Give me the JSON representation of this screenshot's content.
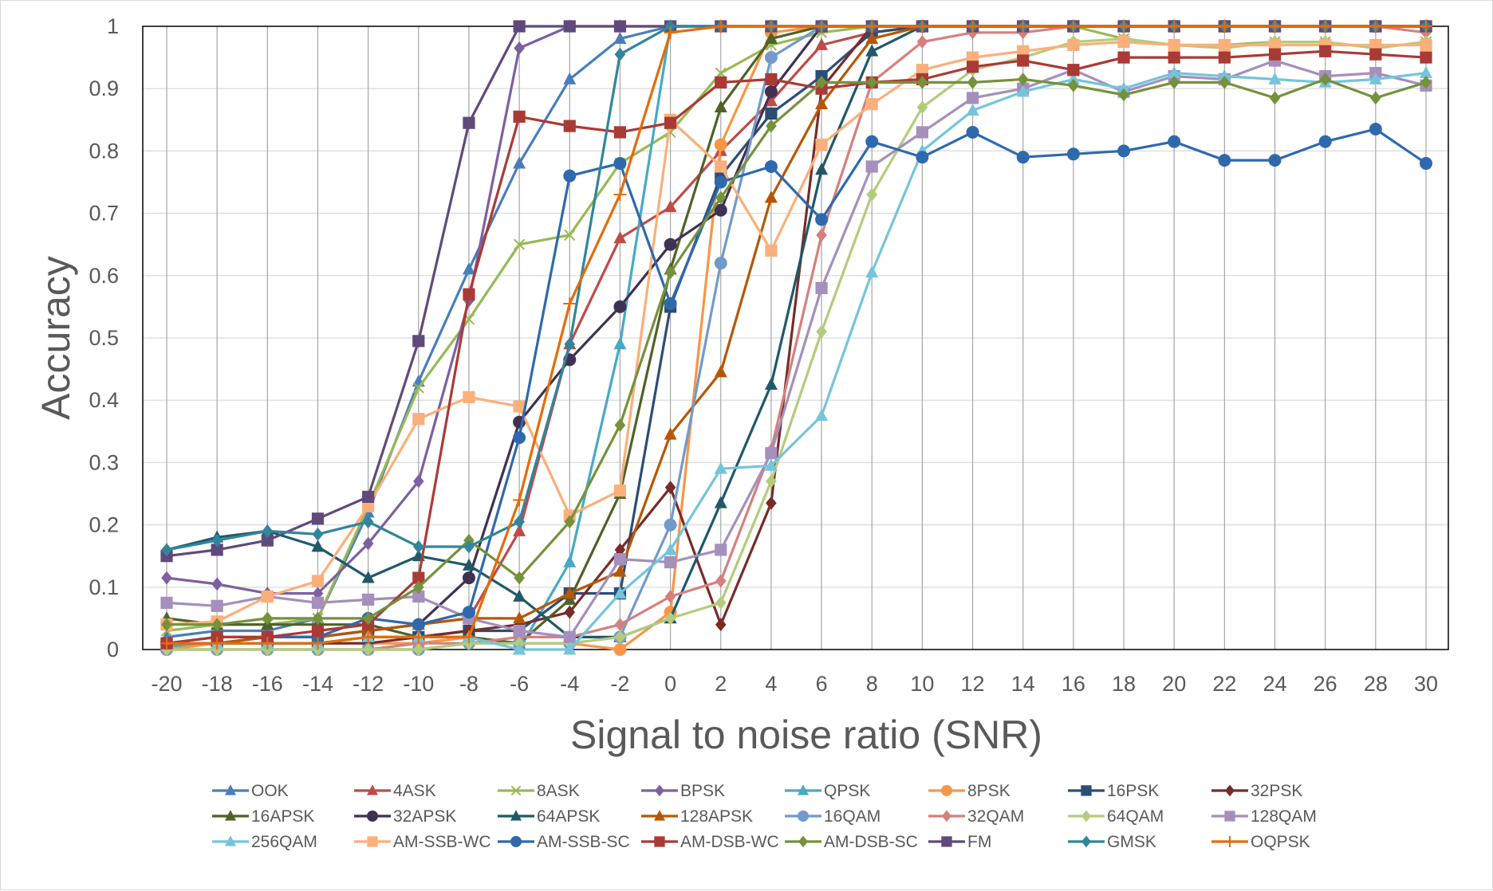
{
  "chart_data": {
    "type": "line",
    "title": "",
    "xlabel": "Signal to noise ratio (SNR)",
    "ylabel": "Accuracy",
    "x": [
      -20,
      -18,
      -16,
      -14,
      -12,
      -10,
      -8,
      -6,
      -4,
      -2,
      0,
      2,
      4,
      6,
      8,
      10,
      12,
      14,
      16,
      18,
      20,
      22,
      24,
      26,
      28,
      30
    ],
    "xlim": [
      -20,
      30
    ],
    "ylim": [
      0,
      1
    ],
    "yticks": [
      "0",
      "0.1",
      "0.2",
      "0.3",
      "0.4",
      "0.5",
      "0.6",
      "0.7",
      "0.8",
      "0.9",
      "1"
    ],
    "xticks": [
      "-20",
      "-18",
      "-16",
      "-14",
      "-12",
      "-10",
      "-8",
      "-6",
      "-4",
      "-2",
      "0",
      "2",
      "4",
      "6",
      "8",
      "10",
      "12",
      "14",
      "16",
      "18",
      "20",
      "22",
      "24",
      "26",
      "28",
      "30"
    ],
    "grid": "vertical",
    "legend": "bottom",
    "series": [
      {
        "name": "OOK",
        "color": "#4a7ebb",
        "marker": "triangle",
        "values": [
          0.02,
          0.03,
          0.03,
          0.05,
          0.22,
          0.43,
          0.61,
          0.78,
          0.915,
          0.98,
          1,
          1,
          1,
          1,
          1,
          1,
          1,
          1,
          1,
          1,
          1,
          1,
          1,
          1,
          1,
          1
        ]
      },
      {
        "name": "4ASK",
        "color": "#be4b48",
        "marker": "triangle",
        "values": [
          0.01,
          0.01,
          0.02,
          0.02,
          0.03,
          0.04,
          0.05,
          0.19,
          0.49,
          0.66,
          0.71,
          0.8,
          0.88,
          0.97,
          0.99,
          1,
          1,
          1,
          1,
          1,
          1,
          1,
          1,
          1,
          1,
          1
        ]
      },
      {
        "name": "8ASK",
        "color": "#98b954",
        "marker": "x",
        "values": [
          0.03,
          0.04,
          0.04,
          0.05,
          0.23,
          0.42,
          0.53,
          0.65,
          0.665,
          0.78,
          0.83,
          0.925,
          0.97,
          0.99,
          1,
          1,
          1,
          1,
          1,
          0.98,
          0.97,
          0.97,
          0.975,
          0.975,
          0.965,
          0.975
        ]
      },
      {
        "name": "BPSK",
        "color": "#7d60a0",
        "marker": "diamond",
        "values": [
          0.115,
          0.105,
          0.09,
          0.09,
          0.17,
          0.27,
          0.56,
          0.965,
          1,
          1,
          1,
          1,
          1,
          1,
          1,
          1,
          1,
          1,
          1,
          1,
          1,
          1,
          1,
          1,
          1,
          1
        ]
      },
      {
        "name": "QPSK",
        "color": "#46aac5",
        "marker": "triangle",
        "values": [
          0.005,
          0.01,
          0.01,
          0.01,
          0.01,
          0.01,
          0.02,
          0,
          0.14,
          0.49,
          1,
          1,
          1,
          1,
          1,
          1,
          1,
          1,
          1,
          1,
          1,
          1,
          1,
          1,
          1,
          1
        ]
      },
      {
        "name": "8PSK",
        "color": "#f79646",
        "marker": "circle",
        "values": [
          0,
          0.01,
          0.01,
          0.01,
          0.01,
          0.01,
          0.02,
          0.01,
          0.01,
          0,
          0.06,
          0.81,
          0.99,
          1,
          1,
          1,
          1,
          1,
          1,
          1,
          1,
          1,
          1,
          1,
          1,
          1
        ]
      },
      {
        "name": "16PSK",
        "color": "#2c4d75",
        "marker": "square",
        "values": [
          0.01,
          0.01,
          0.01,
          0.01,
          0.02,
          0.02,
          0.03,
          0.03,
          0.09,
          0.09,
          0.55,
          0.76,
          0.86,
          0.92,
          0.99,
          1,
          1,
          1,
          1,
          1,
          1,
          1,
          1,
          1,
          1,
          1
        ]
      },
      {
        "name": "32PSK",
        "color": "#772c2a",
        "marker": "diamond",
        "values": [
          0.01,
          0.01,
          0.01,
          0.01,
          0.01,
          0.02,
          0.03,
          0.04,
          0.06,
          0.16,
          0.26,
          0.04,
          0.235,
          0.9,
          1,
          1,
          1,
          1,
          1,
          1,
          1,
          1,
          1,
          1,
          1,
          1
        ]
      },
      {
        "name": "16APSK",
        "color": "#4f6228",
        "marker": "triangle",
        "values": [
          0.05,
          0.04,
          0.04,
          0.04,
          0.04,
          0.02,
          0.02,
          0.01,
          0.08,
          0.25,
          0.61,
          0.87,
          0.98,
          1,
          1,
          1,
          1,
          1,
          1,
          1,
          1,
          1,
          1,
          1,
          1,
          1
        ]
      },
      {
        "name": "32APSK",
        "color": "#403152",
        "marker": "circle",
        "values": [
          0.01,
          0.01,
          0.02,
          0.02,
          0.03,
          0.04,
          0.115,
          0.365,
          0.465,
          0.55,
          0.65,
          0.705,
          0.895,
          1,
          1,
          1,
          1,
          1,
          1,
          1,
          1,
          1,
          1,
          1,
          1,
          1
        ]
      },
      {
        "name": "64APSK",
        "color": "#215968",
        "marker": "triangle",
        "values": [
          0.16,
          0.18,
          0.19,
          0.165,
          0.115,
          0.15,
          0.135,
          0.085,
          0.02,
          0.02,
          0.05,
          0.235,
          0.425,
          0.77,
          0.96,
          1,
          1,
          1,
          1,
          1,
          1,
          1,
          1,
          1,
          1,
          1
        ]
      },
      {
        "name": "128APSK",
        "color": "#b65708",
        "marker": "triangle",
        "values": [
          0.01,
          0.01,
          0.02,
          0.02,
          0.03,
          0.04,
          0.05,
          0.05,
          0.09,
          0.125,
          0.345,
          0.445,
          0.725,
          0.875,
          0.98,
          1,
          1,
          1,
          1,
          1,
          1,
          1,
          1,
          1,
          1,
          1
        ]
      },
      {
        "name": "16QAM",
        "color": "#729aca",
        "marker": "circle",
        "values": [
          0,
          0,
          0,
          0,
          0,
          0,
          0.01,
          0.01,
          0.01,
          0.02,
          0.2,
          0.62,
          0.95,
          1,
          1,
          1,
          1,
          1,
          1,
          1,
          1,
          1,
          1,
          1,
          1,
          1
        ]
      },
      {
        "name": "32QAM",
        "color": "#d5807e",
        "marker": "diamond",
        "values": [
          0,
          0,
          0,
          0,
          0,
          0.01,
          0.01,
          0.02,
          0.02,
          0.04,
          0.085,
          0.11,
          0.32,
          0.665,
          0.91,
          0.975,
          0.99,
          0.99,
          1,
          1,
          1,
          1,
          1,
          1,
          1,
          0.99
        ]
      },
      {
        "name": "64QAM",
        "color": "#b3cc7c",
        "marker": "diamond",
        "values": [
          0,
          0,
          0,
          0,
          0,
          0,
          0.01,
          0.01,
          0.01,
          0.02,
          0.05,
          0.075,
          0.27,
          0.51,
          0.73,
          0.87,
          0.93,
          0.95,
          0.975,
          0.98,
          0.97,
          0.965,
          0.975,
          0.975,
          0.965,
          0.975
        ]
      },
      {
        "name": "128QAM",
        "color": "#a48fbd",
        "marker": "square",
        "values": [
          0.075,
          0.07,
          0.085,
          0.075,
          0.08,
          0.085,
          0.05,
          0.03,
          0.02,
          0.145,
          0.14,
          0.16,
          0.315,
          0.58,
          0.775,
          0.83,
          0.885,
          0.9,
          0.93,
          0.895,
          0.92,
          0.915,
          0.945,
          0.92,
          0.925,
          0.905
        ]
      },
      {
        "name": "256QAM",
        "color": "#75c4da",
        "marker": "triangle",
        "values": [
          0.01,
          0.01,
          0.01,
          0.01,
          0.02,
          0.02,
          0.02,
          0,
          0,
          0.09,
          0.16,
          0.29,
          0.295,
          0.375,
          0.605,
          0.8,
          0.865,
          0.895,
          0.915,
          0.9,
          0.925,
          0.92,
          0.915,
          0.91,
          0.915,
          0.925
        ]
      },
      {
        "name": "AM-SSB-WC",
        "color": "#fbaf7a",
        "marker": "square",
        "values": [
          0.04,
          0.045,
          0.085,
          0.11,
          0.23,
          0.37,
          0.405,
          0.39,
          0.215,
          0.255,
          0.85,
          0.775,
          0.64,
          0.81,
          0.875,
          0.93,
          0.95,
          0.96,
          0.97,
          0.975,
          0.97,
          0.97,
          0.97,
          0.97,
          0.97,
          0.97
        ]
      },
      {
        "name": "AM-SSB-SC",
        "color": "#2f69ad",
        "marker": "circle",
        "values": [
          0.01,
          0.02,
          0.02,
          0.02,
          0.05,
          0.04,
          0.06,
          0.34,
          0.76,
          0.78,
          0.555,
          0.75,
          0.775,
          0.69,
          0.815,
          0.79,
          0.83,
          0.79,
          0.795,
          0.8,
          0.815,
          0.785,
          0.785,
          0.815,
          0.835,
          0.78
        ]
      },
      {
        "name": "AM-DSB-WC",
        "color": "#aa3a36",
        "marker": "square",
        "values": [
          0.01,
          0.02,
          0.02,
          0.03,
          0.04,
          0.115,
          0.57,
          0.855,
          0.84,
          0.83,
          0.845,
          0.91,
          0.915,
          0.9,
          0.91,
          0.915,
          0.935,
          0.945,
          0.93,
          0.95,
          0.95,
          0.95,
          0.955,
          0.96,
          0.955,
          0.95
        ]
      },
      {
        "name": "AM-DSB-SC",
        "color": "#76913b",
        "marker": "diamond",
        "values": [
          0.04,
          0.04,
          0.05,
          0.05,
          0.05,
          0.1,
          0.175,
          0.115,
          0.205,
          0.36,
          0.605,
          0.725,
          0.84,
          0.91,
          0.91,
          0.91,
          0.91,
          0.915,
          0.905,
          0.89,
          0.91,
          0.91,
          0.885,
          0.915,
          0.885,
          0.91
        ]
      },
      {
        "name": "FM",
        "color": "#604a7b",
        "marker": "square",
        "values": [
          0.15,
          0.16,
          0.175,
          0.21,
          0.245,
          0.495,
          0.845,
          1,
          1,
          1,
          1,
          1,
          1,
          1,
          1,
          1,
          1,
          1,
          1,
          1,
          1,
          1,
          1,
          1,
          1,
          1
        ]
      },
      {
        "name": "GMSK",
        "color": "#31859c",
        "marker": "diamond",
        "values": [
          0.16,
          0.175,
          0.19,
          0.185,
          0.205,
          0.165,
          0.165,
          0.205,
          0.49,
          0.955,
          1,
          1,
          1,
          1,
          1,
          1,
          1,
          1,
          1,
          1,
          1,
          1,
          1,
          1,
          1,
          1
        ]
      },
      {
        "name": "OQPSK",
        "color": "#e46c0a",
        "marker": "plus",
        "values": [
          0.01,
          0.01,
          0.01,
          0.01,
          0.02,
          0.02,
          0.02,
          0.24,
          0.555,
          0.73,
          0.99,
          1,
          1,
          1,
          1,
          1,
          1,
          1,
          1,
          1,
          1,
          1,
          1,
          1,
          1,
          1
        ]
      }
    ]
  }
}
